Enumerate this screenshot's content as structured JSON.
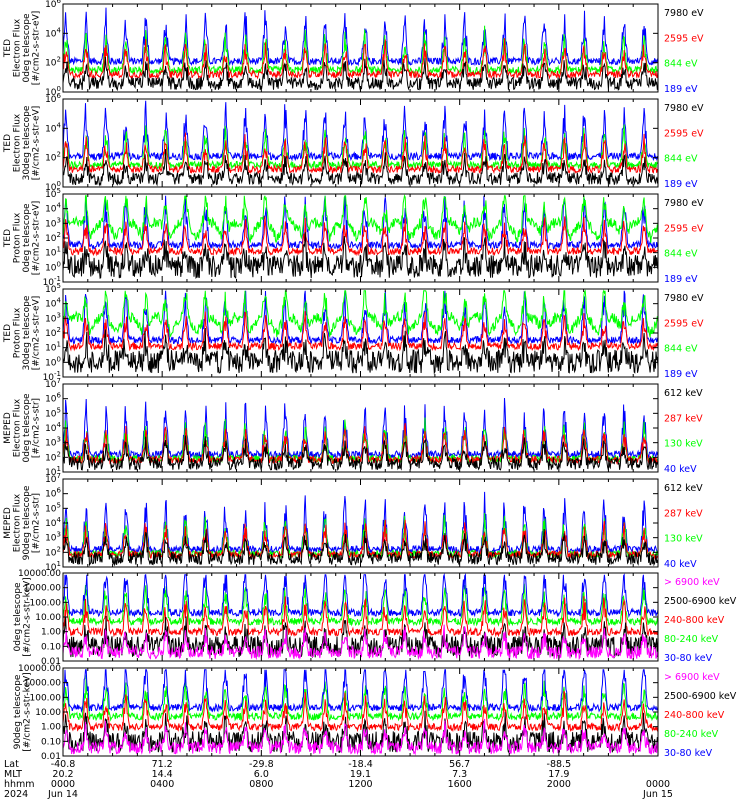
{
  "colors": {
    "black": "#000000",
    "red": "#ff0000",
    "green": "#00ff00",
    "blue": "#0000ff",
    "magenta": "#ff00ff"
  },
  "chart_data": [
    {
      "type": "line",
      "ylabel": [
        "TED",
        "Electron Flux",
        "0deg telescope",
        "[#/cm2-s-str-eV]"
      ],
      "yticks": [
        "10^0",
        "10^2",
        "10^4",
        "10^6"
      ],
      "legend": [
        {
          "name": "7980 eV",
          "color": "black"
        },
        {
          "name": "2595 eV",
          "color": "red"
        },
        {
          "name": "844 eV",
          "color": "green"
        },
        {
          "name": "189 eV",
          "color": "blue"
        }
      ]
    },
    {
      "type": "line",
      "ylabel": [
        "TED",
        "Electron Flux",
        "30deg telescope",
        "[#/cm2-s-str-eV]"
      ],
      "yticks": [
        "10^0",
        "10^2",
        "10^4",
        "10^6"
      ],
      "legend": [
        {
          "name": "7980 eV",
          "color": "black"
        },
        {
          "name": "2595 eV",
          "color": "red"
        },
        {
          "name": "844 eV",
          "color": "green"
        },
        {
          "name": "189 eV",
          "color": "blue"
        }
      ]
    },
    {
      "type": "line",
      "ylabel": [
        "TED",
        "Proton Flux",
        "0deg telescope",
        "[#/cm2-s-str-eV]"
      ],
      "yticks": [
        "10^-1",
        "10^0",
        "10^1",
        "10^2",
        "10^3",
        "10^4",
        "10^5"
      ],
      "legend": [
        {
          "name": "7980 eV",
          "color": "black"
        },
        {
          "name": "2595 eV",
          "color": "red"
        },
        {
          "name": "844 eV",
          "color": "green"
        },
        {
          "name": "189 eV",
          "color": "blue"
        }
      ]
    },
    {
      "type": "line",
      "ylabel": [
        "TED",
        "Proton Flux",
        "30deg telescope",
        "[#/cm2-s-str-eV]"
      ],
      "yticks": [
        "10^-1",
        "10^0",
        "10^1",
        "10^2",
        "10^3",
        "10^4",
        "10^5"
      ],
      "legend": [
        {
          "name": "7980 eV",
          "color": "black"
        },
        {
          "name": "2595 eV",
          "color": "red"
        },
        {
          "name": "844 eV",
          "color": "green"
        },
        {
          "name": "189 eV",
          "color": "blue"
        }
      ]
    },
    {
      "type": "line",
      "ylabel": [
        "MEPED",
        "Electron Flux",
        "0deg telescope",
        "[#/cm2-s-str]"
      ],
      "yticks": [
        "10^1",
        "10^2",
        "10^3",
        "10^4",
        "10^5",
        "10^6",
        "10^7"
      ],
      "legend": [
        {
          "name": "612 keV",
          "color": "black"
        },
        {
          "name": "287 keV",
          "color": "red"
        },
        {
          "name": "130 keV",
          "color": "green"
        },
        {
          "name": "40 keV",
          "color": "blue"
        }
      ]
    },
    {
      "type": "line",
      "ylabel": [
        "MEPED",
        "Electron Flux",
        "90deg telescope",
        "[#/cm2-s-str]"
      ],
      "yticks": [
        "10^1",
        "10^2",
        "10^3",
        "10^4",
        "10^5",
        "10^6",
        "10^7"
      ],
      "legend": [
        {
          "name": "612 keV",
          "color": "black"
        },
        {
          "name": "287 keV",
          "color": "red"
        },
        {
          "name": "130 keV",
          "color": "green"
        },
        {
          "name": "40 keV",
          "color": "blue"
        }
      ]
    },
    {
      "type": "line",
      "ylabel": [
        "0deg telescope",
        "[#/cm2-s-str-keV]"
      ],
      "yticks": [
        "0.01",
        "0.10",
        "1.00",
        "10.00",
        "100.00",
        "1000.00",
        "10000.00"
      ],
      "legend": [
        {
          "name": "> 6900 keV",
          "color": "magenta"
        },
        {
          "name": "2500-6900 keV",
          "color": "black"
        },
        {
          "name": "240-800 keV",
          "color": "red"
        },
        {
          "name": "80-240 keV",
          "color": "green"
        },
        {
          "name": "30-80 keV",
          "color": "blue"
        }
      ]
    },
    {
      "type": "line",
      "ylabel": [
        "90deg telescope",
        "[#/cm2-s-str-keV]"
      ],
      "yticks": [
        "0.01",
        "0.10",
        "1.00",
        "10.00",
        "100.00",
        "1000.00",
        "10000.00"
      ],
      "legend": [
        {
          "name": "> 6900 keV",
          "color": "magenta"
        },
        {
          "name": "2500-6900 keV",
          "color": "black"
        },
        {
          "name": "240-800 keV",
          "color": "red"
        },
        {
          "name": "80-240 keV",
          "color": "green"
        },
        {
          "name": "30-80 keV",
          "color": "blue"
        }
      ]
    }
  ],
  "xaxis": {
    "row_labels": [
      "Lat",
      "MLT",
      "hhmm",
      "2024"
    ],
    "columns": [
      [
        "-40.8",
        "20.2",
        "0000",
        "Jun 14"
      ],
      [
        "71.2",
        "14.4",
        "0400",
        ""
      ],
      [
        "-29.8",
        "6.0",
        "0800",
        ""
      ],
      [
        "-18.4",
        "19.1",
        "1200",
        ""
      ],
      [
        "56.7",
        "7.3",
        "1600",
        ""
      ],
      [
        "-88.5",
        "17.9",
        "2000",
        ""
      ],
      [
        "",
        "",
        "0000",
        "Jun 15"
      ]
    ]
  }
}
